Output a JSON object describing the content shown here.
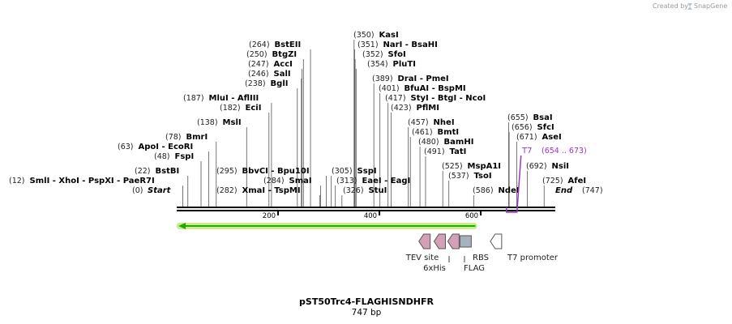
{
  "credit": {
    "text": "Created by",
    "brand": "SnapGene"
  },
  "sequence": {
    "name": "pST50Trc4-FLAGHISNDHFR",
    "length_label": "747 bp",
    "length": 747
  },
  "ends": {
    "start_label": "Start",
    "start_pos": "(0)",
    "end_label": "End",
    "end_pos": "(747)"
  },
  "ruler": [
    {
      "value": 200,
      "label": "200"
    },
    {
      "value": 400,
      "label": "400"
    },
    {
      "value": 600,
      "label": "600"
    }
  ],
  "enzymes": [
    {
      "pos": "(12)",
      "names": "SmlI - XhoI - PspXI - PaeR7I",
      "site": 12
    },
    {
      "pos": "(22)",
      "names": "BstBI",
      "site": 22
    },
    {
      "pos": "(48)",
      "names": "FspI",
      "site": 48
    },
    {
      "pos": "(63)",
      "names": "ApoI - EcoRI",
      "site": 63
    },
    {
      "pos": "(78)",
      "names": "BmrI",
      "site": 78
    },
    {
      "pos": "(138)",
      "names": "MslI",
      "site": 138
    },
    {
      "pos": "(182)",
      "names": "EciI",
      "site": 182
    },
    {
      "pos": "(187)",
      "names": "MluI - AflIII",
      "site": 187
    },
    {
      "pos": "(238)",
      "names": "BglI",
      "site": 238
    },
    {
      "pos": "(246)",
      "names": "SalI",
      "site": 246
    },
    {
      "pos": "(247)",
      "names": "AccI",
      "site": 247
    },
    {
      "pos": "(250)",
      "names": "BtgZI",
      "site": 250
    },
    {
      "pos": "(264)",
      "names": "BstEII",
      "site": 264
    },
    {
      "pos": "(282)",
      "names": "XmaI - TspMI",
      "site": 282
    },
    {
      "pos": "(284)",
      "names": "SmaI",
      "site": 284
    },
    {
      "pos": "(295)",
      "names": "BbvCI - Bpu10I",
      "site": 295
    },
    {
      "pos": "(305)",
      "names": "SspI",
      "site": 305
    },
    {
      "pos": "(313)",
      "names": "EaeI - EagI",
      "site": 313
    },
    {
      "pos": "(326)",
      "names": "StuI",
      "site": 326
    },
    {
      "pos": "(350)",
      "names": "KasI",
      "site": 350
    },
    {
      "pos": "(351)",
      "names": "NarI - BsaHI",
      "site": 351
    },
    {
      "pos": "(352)",
      "names": "SfoI",
      "site": 352
    },
    {
      "pos": "(354)",
      "names": "PluTI",
      "site": 354
    },
    {
      "pos": "(389)",
      "names": "DraI - PmeI",
      "site": 389
    },
    {
      "pos": "(401)",
      "names": "BfuAI - BspMI",
      "site": 401
    },
    {
      "pos": "(417)",
      "names": "StyI - BtgI - NcoI",
      "site": 417
    },
    {
      "pos": "(423)",
      "names": "PflMI",
      "site": 423
    },
    {
      "pos": "(457)",
      "names": "NheI",
      "site": 457
    },
    {
      "pos": "(461)",
      "names": "BmtI",
      "site": 461
    },
    {
      "pos": "(480)",
      "names": "BamHI",
      "site": 480
    },
    {
      "pos": "(491)",
      "names": "TatI",
      "site": 491
    },
    {
      "pos": "(525)",
      "names": "MspA1I",
      "site": 525
    },
    {
      "pos": "(537)",
      "names": "TsoI",
      "site": 537
    },
    {
      "pos": "(586)",
      "names": "NdeI",
      "site": 586
    },
    {
      "pos": "(655)",
      "names": "BsaI",
      "site": 655
    },
    {
      "pos": "(656)",
      "names": "SfcI",
      "site": 656
    },
    {
      "pos": "(671)",
      "names": "AseI",
      "site": 671
    },
    {
      "pos": "(692)",
      "names": "NsiI",
      "site": 692
    },
    {
      "pos": "(725)",
      "names": "AfeI",
      "site": 725
    }
  ],
  "primer": {
    "name": "T7",
    "range": "(654 .. 673)",
    "start": 654,
    "end": 673,
    "color": "#9933cc"
  },
  "orf": {
    "direction": "reverse",
    "start": 0,
    "end": 586,
    "color": "#22aa00",
    "glow": "#c6ee8a"
  },
  "features": [
    {
      "name": "TEV site",
      "type": "arrow-left",
      "site": 489,
      "color": "#d4a0b8"
    },
    {
      "name": "6xHis",
      "type": "arrow-left",
      "site": 519,
      "color": "#d4a0b8"
    },
    {
      "name": "FLAG",
      "type": "arrow-left",
      "site": 546,
      "color": "#d4a0b8"
    },
    {
      "name": "RBS",
      "type": "box",
      "site": 570,
      "color": "#a8b2bc"
    },
    {
      "name": "T7 promoter",
      "type": "arrow-left",
      "site": 630,
      "color": "#ffffff"
    }
  ],
  "colors": {
    "backbone": "#000000",
    "feature_stroke": "#555555"
  }
}
